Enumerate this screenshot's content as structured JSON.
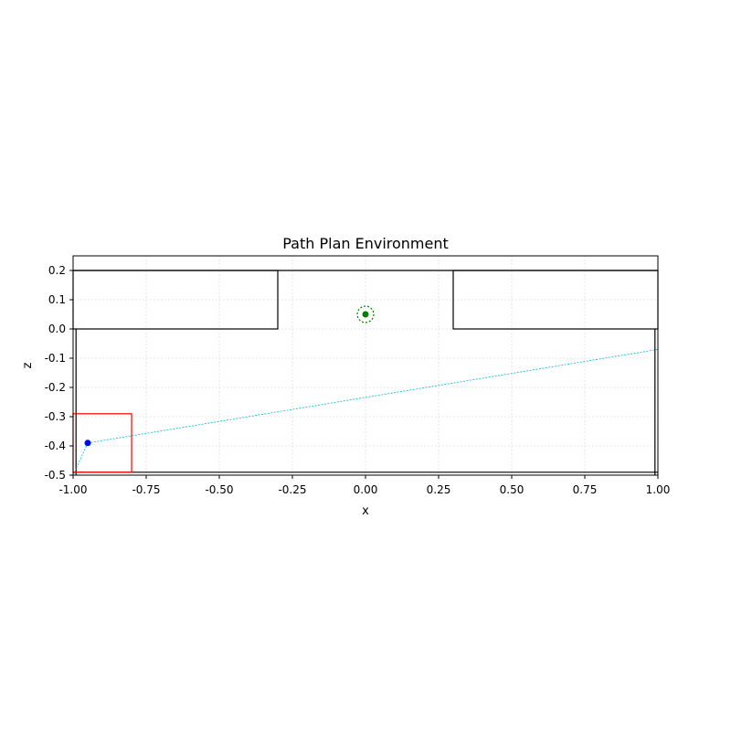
{
  "chart_data": {
    "type": "scatter",
    "title": "Path Plan Environment",
    "xlabel": "x",
    "ylabel": "z",
    "xlim": [
      -1.0,
      1.0
    ],
    "ylim": [
      -0.5,
      0.25
    ],
    "grid": true,
    "x_ticks": [
      {
        "value": -1.0,
        "label": "-1.00"
      },
      {
        "value": -0.75,
        "label": "-0.75"
      },
      {
        "value": -0.5,
        "label": "-0.50"
      },
      {
        "value": -0.25,
        "label": "-0.25"
      },
      {
        "value": 0.0,
        "label": "0.00"
      },
      {
        "value": 0.25,
        "label": "0.25"
      },
      {
        "value": 0.5,
        "label": "0.50"
      },
      {
        "value": 0.75,
        "label": "0.75"
      },
      {
        "value": 1.0,
        "label": "1.00"
      }
    ],
    "y_ticks": [
      {
        "value": 0.2,
        "label": "0.2"
      },
      {
        "value": 0.1,
        "label": "0.1"
      },
      {
        "value": 0.0,
        "label": "0.0"
      },
      {
        "value": -0.1,
        "label": "-0.1"
      },
      {
        "value": -0.2,
        "label": "-0.2"
      },
      {
        "value": -0.3,
        "label": "-0.3"
      },
      {
        "value": -0.4,
        "label": "-0.4"
      },
      {
        "value": -0.5,
        "label": "-0.5"
      }
    ],
    "obstacles": [
      {
        "name": "left-block",
        "x": [
          -1.0,
          -0.3
        ],
        "z": [
          0.0,
          0.2
        ]
      },
      {
        "name": "right-block",
        "x": [
          0.3,
          1.0
        ],
        "z": [
          0.0,
          0.2
        ]
      },
      {
        "name": "top-wall",
        "x": [
          -1.0,
          1.0
        ],
        "z": [
          0.2,
          0.2
        ]
      },
      {
        "name": "bottom-wall",
        "x": [
          -1.0,
          1.0
        ],
        "z": [
          -0.49,
          -0.49
        ]
      },
      {
        "name": "left-wall",
        "x": [
          -0.99,
          -0.99
        ],
        "z": [
          -0.5,
          0.0
        ]
      },
      {
        "name": "right-wall",
        "x": [
          0.99,
          0.99
        ],
        "z": [
          -0.5,
          0.0
        ]
      }
    ],
    "start_region": {
      "x": [
        -1.0,
        -0.8
      ],
      "z": [
        -0.49,
        -0.29
      ],
      "color": "#ff0000"
    },
    "goal": {
      "x": 0.0,
      "z": 0.05,
      "radius": 0.028,
      "color": "#008000"
    },
    "agent": {
      "x": -0.95,
      "z": -0.39,
      "color": "#0000ff"
    },
    "ray_color": "#00bcd4",
    "rays": [
      {
        "from": [
          -0.95,
          -0.39
        ],
        "to": [
          1.0,
          -0.07
        ]
      },
      {
        "from": [
          -0.95,
          -0.39
        ],
        "to": [
          -1.0,
          -0.5
        ]
      }
    ]
  }
}
